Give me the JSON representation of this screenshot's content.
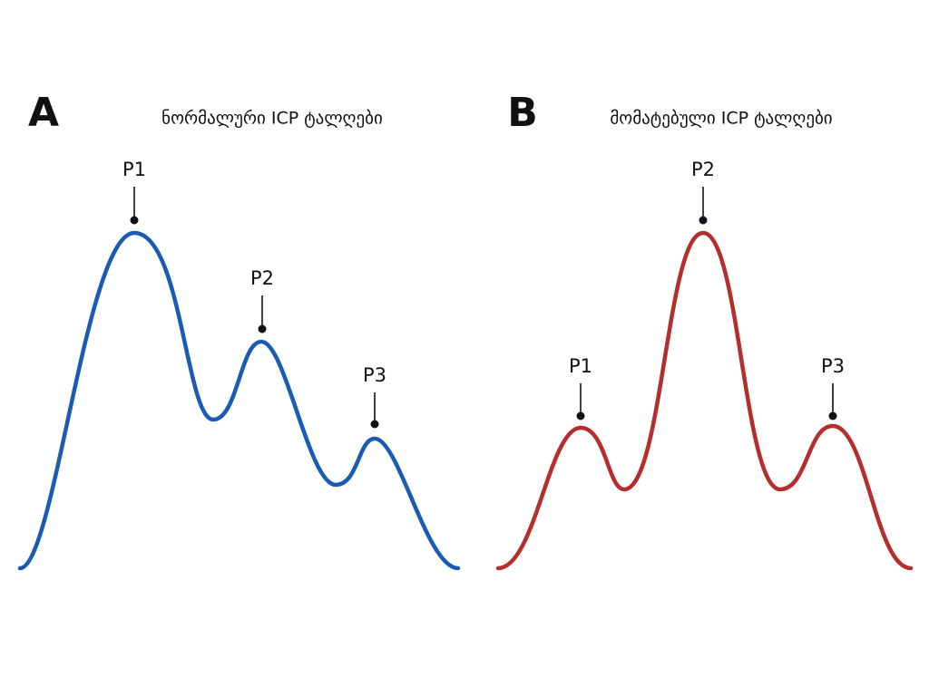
{
  "panels": [
    {
      "letter": "A",
      "title": "ნორმალური ICP ტალღები",
      "peaks": [
        "P1",
        "P2",
        "P3"
      ]
    },
    {
      "letter": "B",
      "title": "მომატებული ICP ტალღები",
      "peaks": [
        "P1",
        "P2",
        "P3"
      ]
    }
  ]
}
